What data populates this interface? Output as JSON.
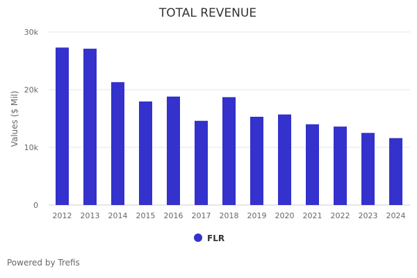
{
  "chart_data": {
    "type": "bar",
    "title": "TOTAL REVENUE",
    "xlabel": "",
    "ylabel": "Values ($ Mil)",
    "categories": [
      "2012",
      "2013",
      "2014",
      "2015",
      "2016",
      "2017",
      "2018",
      "2019",
      "2020",
      "2021",
      "2022",
      "2023",
      "2024"
    ],
    "series": [
      {
        "name": "FLR",
        "values": [
          27300,
          27100,
          21300,
          17950,
          18800,
          14600,
          18700,
          15300,
          15700,
          14000,
          13600,
          12500,
          11600
        ]
      }
    ],
    "ylim": [
      0,
      30000
    ],
    "yticks": [
      0,
      10000,
      20000,
      30000
    ],
    "ytick_labels": [
      "0",
      "10k",
      "20k",
      "30k"
    ],
    "grid": true,
    "legend": "bottom-center",
    "colors": {
      "bar": "#3431CC",
      "grid": "#e6e6e6",
      "text": "#333333"
    }
  },
  "footer": {
    "credit": "Powered by Trefis"
  }
}
